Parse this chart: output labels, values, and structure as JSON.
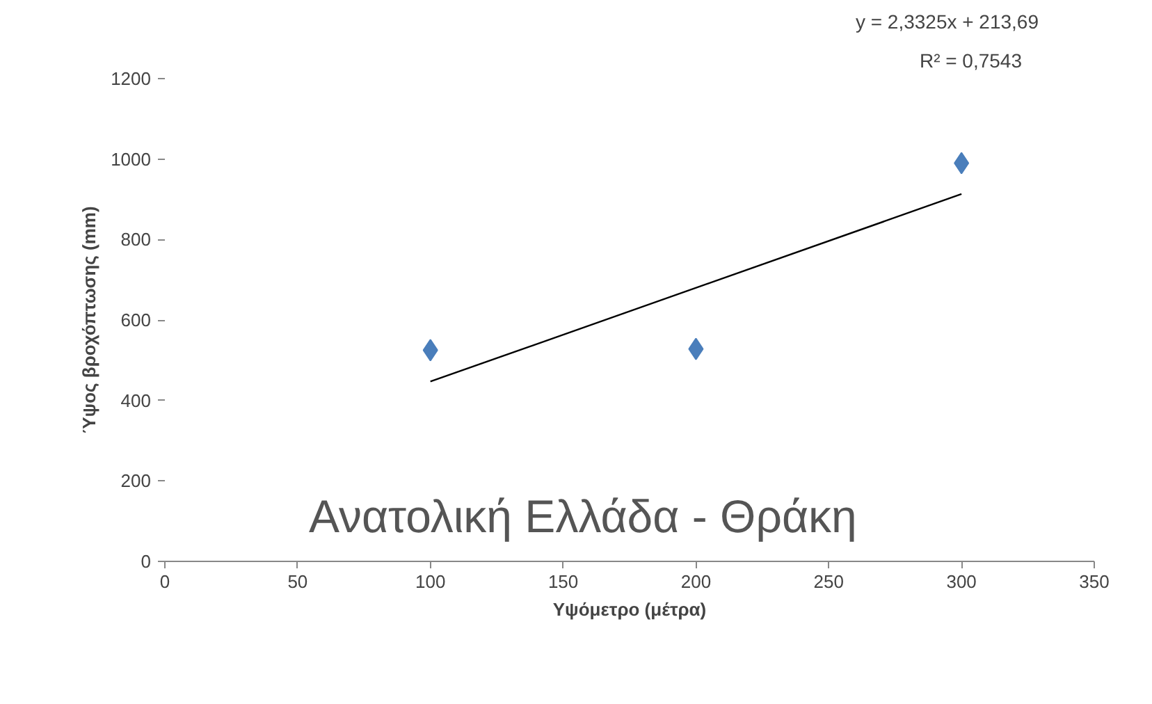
{
  "chart_data": {
    "type": "scatter",
    "title": "Ανατολική Ελλάδα - Θράκη",
    "xlabel": "Υψόμετρο (μέτρα)",
    "ylabel": "Ύψος βροχόπτωσης (mm)",
    "annotations": [
      "y = 2,3325x + 213,69",
      "R² = 0,7543"
    ],
    "series": [
      {
        "color": "#4a7ebb",
        "marker": "diamond",
        "x": [
          100,
          200,
          300
        ],
        "values": [
          525,
          528,
          990
        ]
      },
      {
        "type": "line",
        "color": "#000000",
        "x": [
          100,
          300
        ],
        "values": [
          447,
          913
        ]
      }
    ],
    "xlim": [
      0,
      350
    ],
    "xticks": [
      0,
      50,
      100,
      150,
      200,
      250,
      300,
      350
    ],
    "ylim": [
      0,
      1200
    ],
    "yticks": [
      0,
      200,
      400,
      600,
      800,
      1000,
      1200
    ],
    "grid": false
  }
}
